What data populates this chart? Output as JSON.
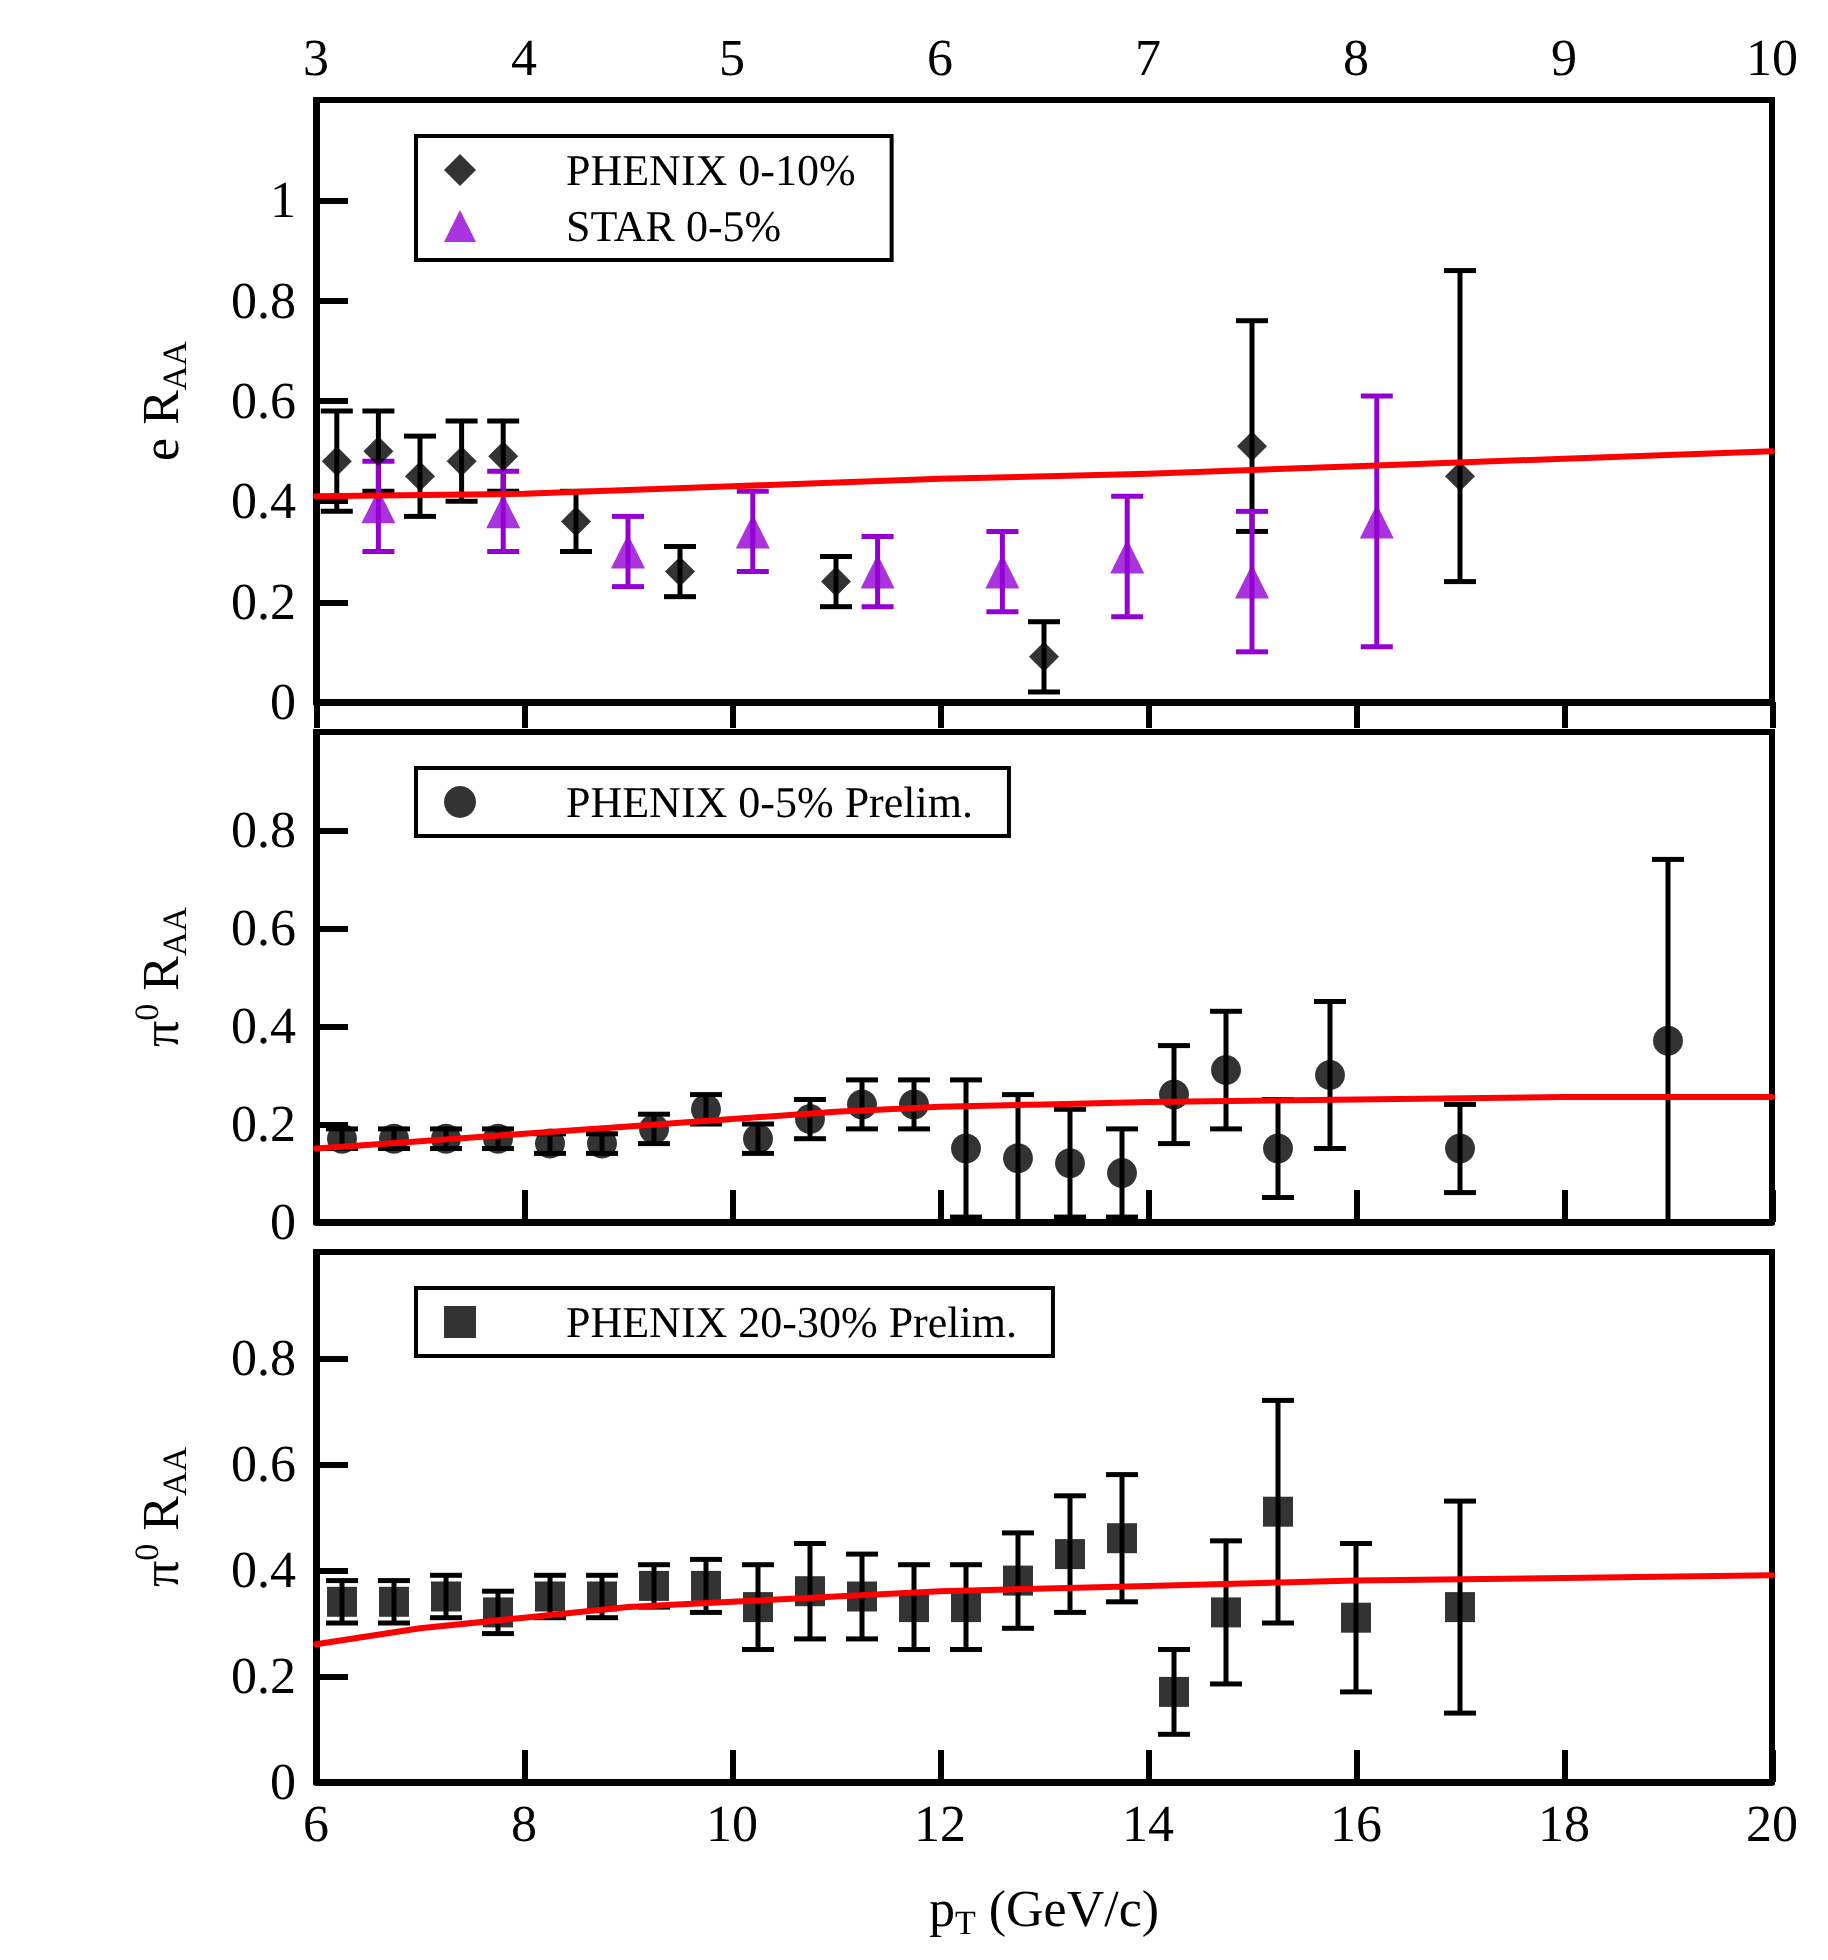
{
  "chart_data": [
    {
      "type": "scatter",
      "ylabel": "e R$_{AA}$",
      "xlim": [
        3,
        10
      ],
      "xticks": [
        3,
        4,
        5,
        6,
        7,
        8,
        9,
        10
      ],
      "ylim": [
        0,
        1.2
      ],
      "yticks": [
        0,
        0.2,
        0.4,
        0.6,
        0.8,
        1
      ],
      "legend": "top left",
      "grid": false,
      "series": [
        {
          "name": "PHENIX 0-10%",
          "color": "#000000",
          "marker": "diamond",
          "x": [
            3.1,
            3.3,
            3.5,
            3.7,
            3.9,
            4.25,
            4.75,
            5.5,
            6.5,
            7.5,
            8.5
          ],
          "values": [
            0.48,
            0.5,
            0.45,
            0.48,
            0.49,
            0.36,
            0.26,
            0.24,
            0.09,
            0.51,
            0.45
          ],
          "errors": [
            0.1,
            0.08,
            0.08,
            0.08,
            0.07,
            0.06,
            0.05,
            0.05,
            0.07,
            [
              0.34,
              0.76
            ],
            [
              0.24,
              0.86
            ]
          ]
        },
        {
          "name": "STAR 0-5%",
          "color": "#9400d3",
          "marker": "triangle",
          "x": [
            3.3,
            3.9,
            4.5,
            5.1,
            5.7,
            6.3,
            6.9,
            7.5,
            8.1
          ],
          "values": [
            0.39,
            0.38,
            0.3,
            0.34,
            0.26,
            0.26,
            0.29,
            0.24,
            0.36
          ],
          "errors": [
            0.09,
            0.08,
            0.07,
            0.08,
            0.07,
            0.08,
            0.12,
            0.14,
            0.25
          ]
        },
        {
          "type": "line",
          "color": "#ff0000",
          "marker": "none",
          "x": [
            3,
            4,
            5,
            6,
            7,
            8,
            9,
            10
          ],
          "values": [
            0.41,
            0.415,
            0.43,
            0.445,
            0.455,
            0.47,
            0.485,
            0.5
          ]
        }
      ]
    },
    {
      "type": "scatter",
      "ylabel": "π$^{0}$ R$_{AA}$",
      "xlim": [
        6,
        20
      ],
      "xticks": [
        6,
        8,
        10,
        12,
        14,
        16,
        18,
        20
      ],
      "ylim": [
        0,
        1
      ],
      "yticks": [
        0,
        0.2,
        0.4,
        0.6,
        0.8
      ],
      "legend": "top left",
      "grid": false,
      "tick_labels": "y",
      "series": [
        {
          "name": "PHENIX 0-5% Prelim.",
          "color": "#000000",
          "marker": "circle",
          "x": [
            6.25,
            6.75,
            7.25,
            7.75,
            8.25,
            8.75,
            9.25,
            9.75,
            10.25,
            10.75,
            11.25,
            11.75,
            12.25,
            12.75,
            13.25,
            13.75,
            14.25,
            14.75,
            15.25,
            15.75,
            17,
            19
          ],
          "values": [
            0.17,
            0.17,
            0.17,
            0.17,
            0.16,
            0.16,
            0.19,
            0.23,
            0.17,
            0.21,
            0.24,
            0.24,
            0.15,
            0.13,
            0.12,
            0.1,
            0.26,
            0.31,
            0.15,
            0.3,
            0.15,
            0.37
          ],
          "errors": [
            0.02,
            0.02,
            0.02,
            0.02,
            0.02,
            0.02,
            0.03,
            0.03,
            0.03,
            0.04,
            0.05,
            0.05,
            0.14,
            0.13,
            0.11,
            0.09,
            0.1,
            0.12,
            0.1,
            0.15,
            0.09,
            0.37
          ]
        },
        {
          "type": "line",
          "color": "#ff0000",
          "marker": "none",
          "x": [
            6,
            7,
            8,
            9,
            10,
            11,
            12,
            13,
            14,
            16,
            18,
            20
          ],
          "values": [
            0.15,
            0.165,
            0.18,
            0.195,
            0.21,
            0.225,
            0.235,
            0.24,
            0.245,
            0.25,
            0.255,
            0.255
          ]
        }
      ]
    },
    {
      "type": "scatter",
      "ylabel": "π$^{0}$ R$_{AA}$",
      "xlabel": "p$_{T}$ (GeV/c)",
      "xlim": [
        6,
        20
      ],
      "xticks": [
        6,
        8,
        10,
        12,
        14,
        16,
        18,
        20
      ],
      "ylim": [
        0,
        1
      ],
      "yticks": [
        0,
        0.2,
        0.4,
        0.6,
        0.8
      ],
      "legend": "top left",
      "grid": false,
      "series": [
        {
          "name": "PHENIX 20-30% Prelim.",
          "color": "#000000",
          "marker": "square",
          "x": [
            6.25,
            6.75,
            7.25,
            7.75,
            8.25,
            8.75,
            9.25,
            9.75,
            10.25,
            10.75,
            11.25,
            11.75,
            12.25,
            12.75,
            13.25,
            13.75,
            14.25,
            14.75,
            15.25,
            16,
            17
          ],
          "values": [
            0.34,
            0.34,
            0.35,
            0.32,
            0.35,
            0.35,
            0.37,
            0.37,
            0.33,
            0.36,
            0.35,
            0.33,
            0.33,
            0.38,
            0.43,
            0.46,
            0.17,
            0.32,
            0.51,
            0.31,
            0.33
          ],
          "errors": [
            0.04,
            0.04,
            0.04,
            0.04,
            0.04,
            0.04,
            0.04,
            0.05,
            0.08,
            0.09,
            0.08,
            0.08,
            0.08,
            0.09,
            0.11,
            0.12,
            0.08,
            0.135,
            0.21,
            0.14,
            0.2
          ]
        },
        {
          "type": "line",
          "color": "#ff0000",
          "marker": "none",
          "x": [
            6,
            7,
            8,
            9,
            10,
            11,
            12,
            14,
            16,
            18,
            20
          ],
          "values": [
            0.26,
            0.29,
            0.31,
            0.33,
            0.34,
            0.35,
            0.36,
            0.37,
            0.38,
            0.385,
            0.39
          ]
        }
      ]
    }
  ]
}
